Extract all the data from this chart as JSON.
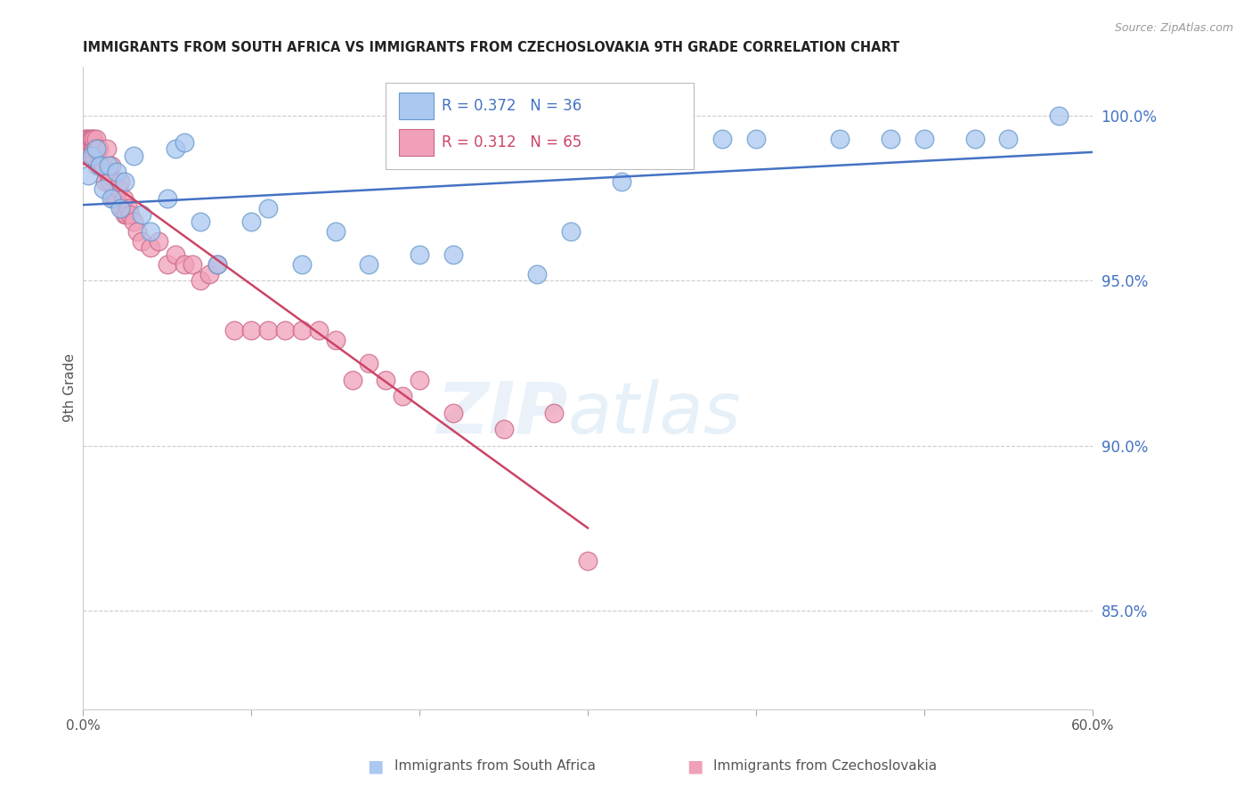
{
  "title": "IMMIGRANTS FROM SOUTH AFRICA VS IMMIGRANTS FROM CZECHOSLOVAKIA 9TH GRADE CORRELATION CHART",
  "source": "Source: ZipAtlas.com",
  "ylabel": "9th Grade",
  "right_yticks": [
    100.0,
    95.0,
    90.0,
    85.0
  ],
  "xlim": [
    0.0,
    60.0
  ],
  "ylim": [
    82.0,
    101.5
  ],
  "legend_blue_label": "Immigrants from South Africa",
  "legend_pink_label": "Immigrants from Czechoslovakia",
  "legend_r_blue": "R = 0.372",
  "legend_n_blue": "N = 36",
  "legend_r_pink": "R = 0.312",
  "legend_n_pink": "N = 65",
  "blue_color": "#aac8f0",
  "blue_edge": "#6699cc",
  "pink_color": "#f0a0b8",
  "pink_edge": "#cc6688",
  "trendline_blue": "#4472c4",
  "trendline_pink": "#cc4466",
  "blue_x": [
    0.3,
    0.5,
    0.8,
    1.0,
    1.2,
    1.5,
    1.7,
    2.0,
    2.2,
    2.5,
    3.0,
    3.5,
    4.0,
    5.0,
    5.5,
    6.0,
    7.0,
    8.0,
    10.0,
    11.0,
    13.0,
    15.0,
    17.0,
    20.0,
    22.0,
    27.0,
    29.0,
    32.0,
    38.0,
    40.0,
    45.0,
    48.0,
    50.0,
    53.0,
    55.0,
    58.0
  ],
  "blue_y": [
    98.2,
    98.8,
    99.0,
    98.5,
    97.8,
    98.5,
    97.5,
    98.3,
    97.2,
    98.0,
    98.8,
    97.0,
    96.5,
    97.5,
    99.0,
    99.2,
    96.8,
    95.5,
    96.8,
    97.2,
    95.5,
    96.5,
    95.5,
    95.8,
    95.8,
    95.2,
    96.5,
    98.0,
    99.3,
    99.3,
    99.3,
    99.3,
    99.3,
    99.3,
    99.3,
    100.0
  ],
  "pink_x": [
    0.1,
    0.15,
    0.2,
    0.25,
    0.3,
    0.35,
    0.4,
    0.45,
    0.5,
    0.55,
    0.6,
    0.65,
    0.7,
    0.75,
    0.8,
    0.85,
    0.9,
    0.95,
    1.0,
    1.1,
    1.2,
    1.3,
    1.4,
    1.5,
    1.6,
    1.7,
    1.8,
    1.9,
    2.0,
    2.1,
    2.2,
    2.3,
    2.4,
    2.5,
    2.6,
    2.7,
    2.8,
    3.0,
    3.2,
    3.5,
    4.0,
    4.5,
    5.0,
    5.5,
    6.0,
    6.5,
    7.0,
    7.5,
    8.0,
    9.0,
    10.0,
    11.0,
    12.0,
    13.0,
    14.0,
    15.0,
    16.0,
    17.0,
    18.0,
    19.0,
    20.0,
    22.0,
    25.0,
    28.0,
    30.0
  ],
  "pink_y": [
    99.3,
    99.0,
    99.3,
    98.8,
    99.3,
    99.0,
    99.0,
    99.3,
    99.3,
    99.0,
    99.0,
    99.3,
    98.8,
    99.0,
    99.3,
    98.5,
    99.0,
    99.0,
    98.5,
    98.5,
    98.5,
    98.0,
    99.0,
    98.2,
    98.0,
    98.5,
    97.5,
    97.5,
    97.5,
    97.8,
    98.0,
    97.2,
    97.5,
    97.0,
    97.0,
    97.2,
    97.0,
    96.8,
    96.5,
    96.2,
    96.0,
    96.2,
    95.5,
    95.8,
    95.5,
    95.5,
    95.0,
    95.2,
    95.5,
    93.5,
    93.5,
    93.5,
    93.5,
    93.5,
    93.5,
    93.2,
    92.0,
    92.5,
    92.0,
    91.5,
    92.0,
    91.0,
    90.5,
    91.0,
    86.5
  ]
}
